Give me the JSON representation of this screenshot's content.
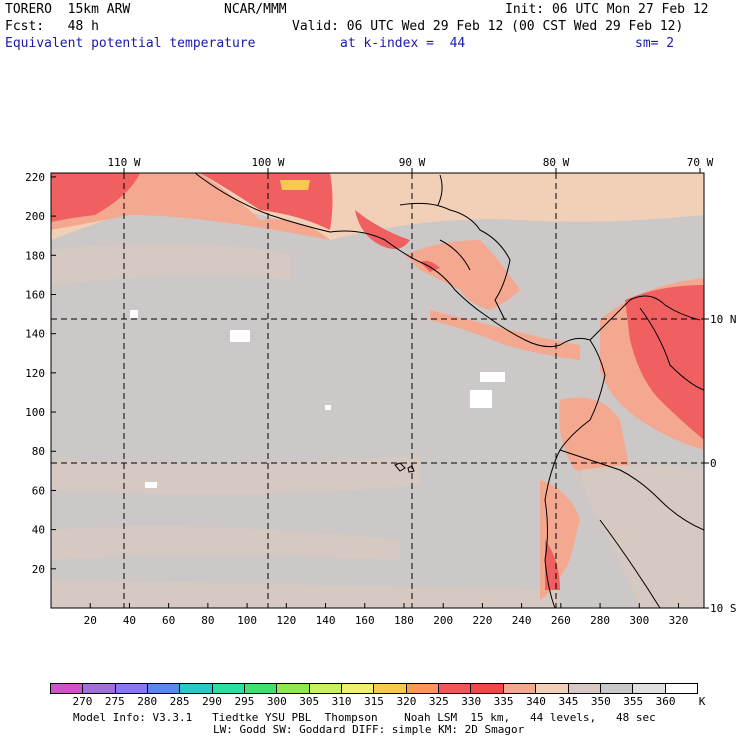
{
  "header": {
    "model": "TORERO  15km ARW",
    "center": "NCAR/MMM",
    "init": "Init: 06 UTC Mon 27 Feb 12",
    "forecast": "Fcst:   48 h",
    "valid": "Valid: 06 UTC Wed 29 Feb 12 (00 CST Wed 29 Feb 12)",
    "field": "Equivalent potential temperature",
    "level": "at k-index =  44",
    "smoothing": "sm= 2"
  },
  "map": {
    "x_ticks": [
      "20",
      "40",
      "60",
      "80",
      "100",
      "120",
      "140",
      "160",
      "180",
      "200",
      "220",
      "240",
      "260",
      "280",
      "300",
      "320"
    ],
    "y_ticks": [
      "20",
      "40",
      "60",
      "80",
      "100",
      "120",
      "140",
      "160",
      "180",
      "200",
      "220"
    ],
    "lon_labels": [
      "110 W",
      "100 W",
      "90 W",
      "80 W",
      "70 W"
    ],
    "lat_labels": [
      "10 N",
      "0",
      "10 S"
    ]
  },
  "colorbar": {
    "labels": [
      "270",
      "275",
      "280",
      "285",
      "290",
      "295",
      "300",
      "305",
      "310",
      "315",
      "320",
      "325",
      "330",
      "335",
      "340",
      "345",
      "350",
      "355",
      "360"
    ],
    "unit": "K",
    "colors": [
      "#cc55cc",
      "#a070d8",
      "#8a7ae8",
      "#5a8ae8",
      "#2ac8c8",
      "#2ae0a0",
      "#40e070",
      "#90e850",
      "#c8f060",
      "#f0f070",
      "#f8c850",
      "#f89858",
      "#f05858",
      "#f04848",
      "#f4a890",
      "#f2d0b8",
      "#d8c8c4",
      "#c8c8c8",
      "#e0e0e0",
      "#ffffff"
    ]
  },
  "footer": {
    "line1": "Model Info: V3.3.1   Tiedtke YSU PBL  Thompson    Noah LSM  15 km,   44 levels,   48 sec",
    "line2": "LW: Godd SW: Goddard DIFF: simple KM: 2D Smagor"
  }
}
